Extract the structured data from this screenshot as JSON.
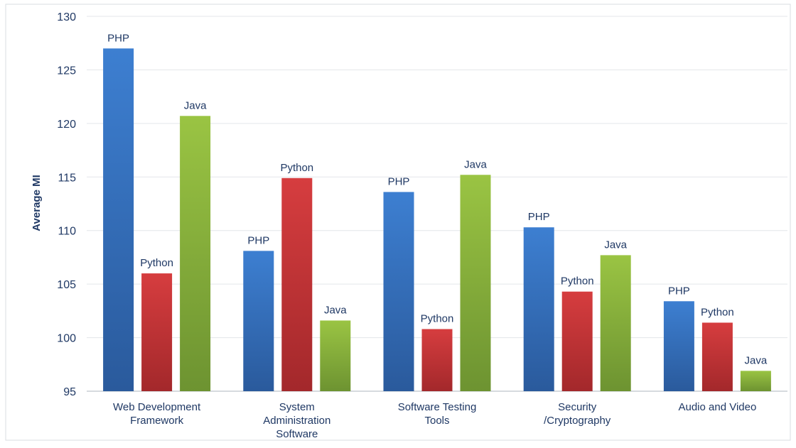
{
  "chart_data": {
    "type": "bar",
    "title": "",
    "xlabel": "",
    "ylabel": "Average MI",
    "ylim": [
      95,
      130
    ],
    "yticks": [
      95,
      100,
      105,
      110,
      115,
      120,
      125,
      130
    ],
    "grid": true,
    "legend": "none",
    "categories": [
      [
        "Web Development",
        "Framework"
      ],
      [
        "System",
        "Administration",
        "Software"
      ],
      [
        "Software Testing",
        "Tools"
      ],
      [
        "Security",
        "/Cryptography"
      ],
      [
        "Audio and Video"
      ]
    ],
    "series": [
      {
        "name": "PHP",
        "color": "#3a78c6",
        "values": [
          127.0,
          108.1,
          113.6,
          110.3,
          103.4
        ]
      },
      {
        "name": "Python",
        "color": "#c9373a",
        "values": [
          106.0,
          114.9,
          100.8,
          104.3,
          101.4
        ]
      },
      {
        "name": "Java",
        "color": "#8db83e",
        "values": [
          120.7,
          101.6,
          115.2,
          107.7,
          96.9
        ]
      }
    ]
  }
}
